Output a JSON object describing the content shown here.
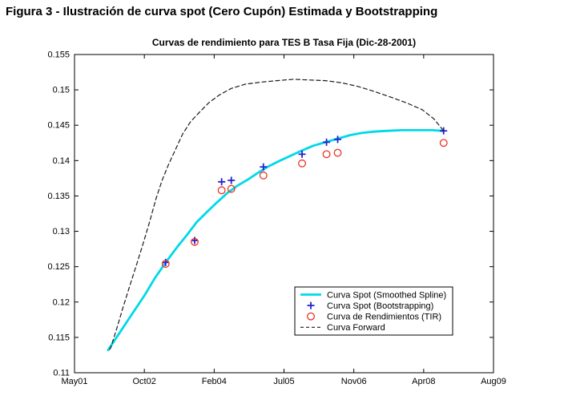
{
  "page": {
    "figure_title": "Figura 3 - Ilustración de curva spot (Cero Cupón) Estimada y Bootstrapping",
    "background": "#ffffff"
  },
  "chart_data": {
    "type": "line",
    "title": "Curvas de rendimiento para TES B Tasa Fija (Dic-28-2001)",
    "xlabel": "",
    "ylabel": "",
    "grid": false,
    "axis_color": "#000000",
    "x_range": [
      2001.37,
      2009.6
    ],
    "y_range": [
      0.11,
      0.155
    ],
    "x_tick_labels": [
      "May01",
      "Oct02",
      "Feb04",
      "Jul05",
      "Nov06",
      "Apr08",
      "Aug09"
    ],
    "y_tick_values": [
      0.11,
      0.115,
      0.12,
      0.125,
      0.13,
      0.135,
      0.14,
      0.145,
      0.15,
      0.155
    ],
    "y_tick_labels": [
      "0.11",
      "0.115",
      "0.12",
      "0.125",
      "0.13",
      "0.135",
      "0.14",
      "0.145",
      "0.15",
      "0.155"
    ],
    "legend": {
      "position": "bottom-right-inside"
    },
    "series": [
      {
        "name": "Curva Spot (Smoothed Spline)",
        "type": "line",
        "marker": null,
        "color": "#00d9e8",
        "line_width": 2.8,
        "dash": null,
        "points": [
          [
            2002.03,
            0.1132
          ],
          [
            2002.27,
            0.1158
          ],
          [
            2002.51,
            0.1184
          ],
          [
            2002.75,
            0.121
          ],
          [
            2002.95,
            0.1234
          ],
          [
            2003.16,
            0.1256
          ],
          [
            2003.38,
            0.1277
          ],
          [
            2003.58,
            0.1295
          ],
          [
            2003.77,
            0.1313
          ],
          [
            2003.98,
            0.1328
          ],
          [
            2004.17,
            0.1341
          ],
          [
            2004.37,
            0.1354
          ],
          [
            2004.56,
            0.1364
          ],
          [
            2004.77,
            0.1373
          ],
          [
            2004.96,
            0.1382
          ],
          [
            2005.16,
            0.1391
          ],
          [
            2005.38,
            0.1399
          ],
          [
            2005.59,
            0.1406
          ],
          [
            2005.83,
            0.1414
          ],
          [
            2006.06,
            0.1421
          ],
          [
            2006.3,
            0.1426
          ],
          [
            2006.54,
            0.1431
          ],
          [
            2006.78,
            0.1436
          ],
          [
            2007.01,
            0.1439
          ],
          [
            2007.25,
            0.1441
          ],
          [
            2007.49,
            0.1442
          ],
          [
            2007.8,
            0.1443
          ],
          [
            2008.12,
            0.1443
          ],
          [
            2008.39,
            0.1443
          ],
          [
            2008.62,
            0.1442
          ]
        ]
      },
      {
        "name": "Curva Spot (Bootstrapping)",
        "type": "scatter",
        "marker": "plus",
        "color": "#2222cc",
        "points": [
          [
            2003.16,
            0.1256
          ],
          [
            2003.73,
            0.1287
          ],
          [
            2004.26,
            0.137
          ],
          [
            2004.45,
            0.1372
          ],
          [
            2005.08,
            0.1391
          ],
          [
            2005.84,
            0.1409
          ],
          [
            2006.32,
            0.1426
          ],
          [
            2006.54,
            0.143
          ],
          [
            2008.62,
            0.1442
          ]
        ]
      },
      {
        "name": "Curva de Rendimientos (TIR)",
        "type": "scatter",
        "marker": "circle",
        "color": "#ee3124",
        "points": [
          [
            2003.16,
            0.1254
          ],
          [
            2003.73,
            0.1285
          ],
          [
            2004.26,
            0.1358
          ],
          [
            2004.45,
            0.136
          ],
          [
            2005.08,
            0.1379
          ],
          [
            2005.84,
            0.1396
          ],
          [
            2006.32,
            0.1409
          ],
          [
            2006.54,
            0.1411
          ],
          [
            2008.62,
            0.1425
          ]
        ]
      },
      {
        "name": "Curva Forward",
        "type": "line",
        "marker": null,
        "color": "#1a1a1a",
        "line_width": 1.2,
        "dash": "5,3.5",
        "points": [
          [
            2002.06,
            0.1133
          ],
          [
            2002.08,
            0.1135
          ],
          [
            2002.21,
            0.1165
          ],
          [
            2002.33,
            0.1194
          ],
          [
            2002.46,
            0.1224
          ],
          [
            2002.59,
            0.1253
          ],
          [
            2002.71,
            0.1281
          ],
          [
            2002.84,
            0.1312
          ],
          [
            2002.97,
            0.1346
          ],
          [
            2003.09,
            0.1372
          ],
          [
            2003.22,
            0.1395
          ],
          [
            2003.35,
            0.1415
          ],
          [
            2003.49,
            0.1437
          ],
          [
            2003.65,
            0.1455
          ],
          [
            2003.82,
            0.1468
          ],
          [
            2004.01,
            0.1482
          ],
          [
            2004.22,
            0.1493
          ],
          [
            2004.45,
            0.1502
          ],
          [
            2004.72,
            0.1508
          ],
          [
            2005.04,
            0.1511
          ],
          [
            2005.35,
            0.1513
          ],
          [
            2005.67,
            0.1515
          ],
          [
            2005.98,
            0.1514
          ],
          [
            2006.3,
            0.1513
          ],
          [
            2006.62,
            0.151
          ],
          [
            2006.93,
            0.1505
          ],
          [
            2007.25,
            0.1498
          ],
          [
            2007.57,
            0.149
          ],
          [
            2007.88,
            0.1482
          ],
          [
            2008.2,
            0.1472
          ],
          [
            2008.43,
            0.1459
          ],
          [
            2008.62,
            0.1442
          ]
        ]
      }
    ]
  }
}
